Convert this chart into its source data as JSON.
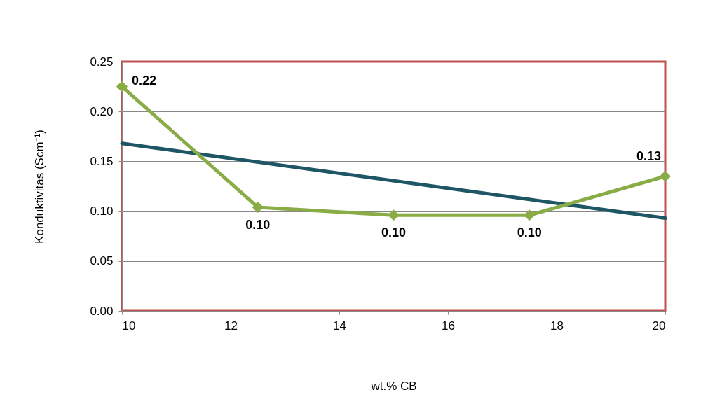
{
  "chart_data": {
    "type": "line",
    "xlabel": "wt.% CB",
    "ylabel": "Konduktivitas (Scm⁻¹)",
    "x": [
      10,
      12.5,
      15,
      17.5,
      20
    ],
    "xlim": [
      10,
      20
    ],
    "xticks": [
      10,
      12,
      14,
      16,
      18,
      20
    ],
    "ylim": [
      0,
      0.25
    ],
    "yticks": [
      {
        "value": 0,
        "label": "0.00"
      },
      0.05,
      {
        "value": 0.1,
        "label": "0.10"
      },
      0.15,
      {
        "value": 0.2,
        "label": "0.20"
      },
      0.25
    ],
    "grid": "y",
    "marker": "diamond",
    "line_style": "solid",
    "series": [
      {
        "color": "#8aac46",
        "values": [
          0.225,
          0.104,
          0.096,
          0.096,
          0.135
        ],
        "value_labels": [
          "0.22",
          "0.10",
          "0.10",
          "0.10",
          "0.13"
        ]
      },
      {
        "type": "line",
        "x": [
          10,
          20
        ],
        "values": [
          0.168,
          0.093
        ],
        "color": "#1f5666",
        "marker": "none"
      }
    ]
  }
}
